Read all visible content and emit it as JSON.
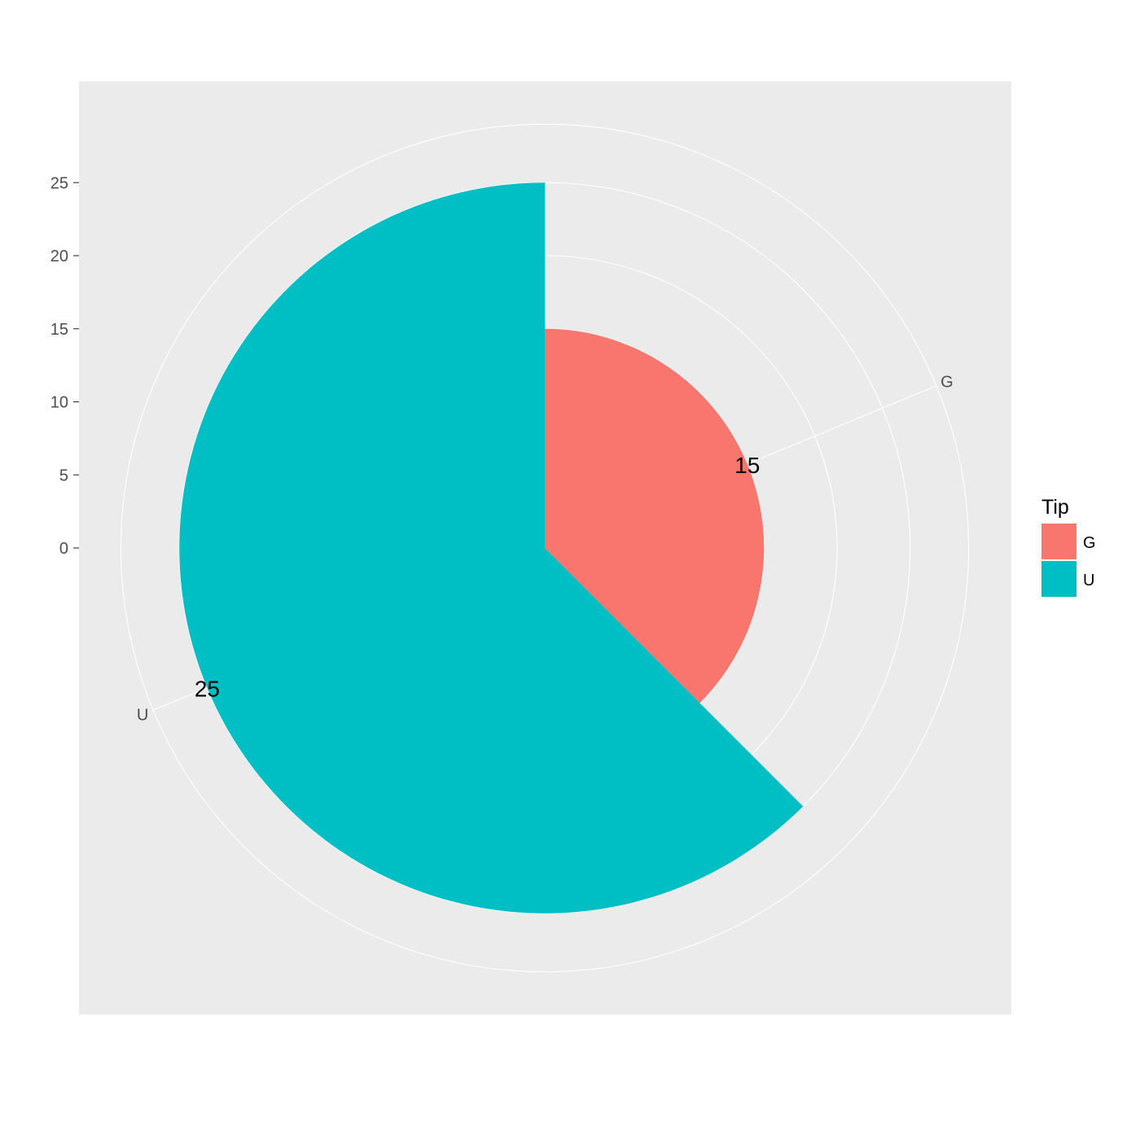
{
  "chart_data": {
    "type": "pie",
    "subtype": "coord_polar rose",
    "title": "",
    "xlabel": "",
    "ylabel": "",
    "categories": [
      "G",
      "U"
    ],
    "values": [
      15,
      25
    ],
    "value_labels": [
      "15",
      "25"
    ],
    "ylim": [
      0,
      29
    ],
    "y_ticks": [
      "0",
      "5",
      "10",
      "15",
      "20",
      "25"
    ],
    "grid": true,
    "panel_background": "#EBEBEB",
    "grid_color": "#FFFFFF",
    "colors": {
      "G": "#F8766D",
      "U": "#00BFC4"
    },
    "legend": {
      "title": "Tip",
      "position": "right",
      "entries": [
        {
          "label": "G",
          "color": "#F8766D"
        },
        {
          "label": "U",
          "color": "#00BFC4"
        }
      ]
    }
  }
}
